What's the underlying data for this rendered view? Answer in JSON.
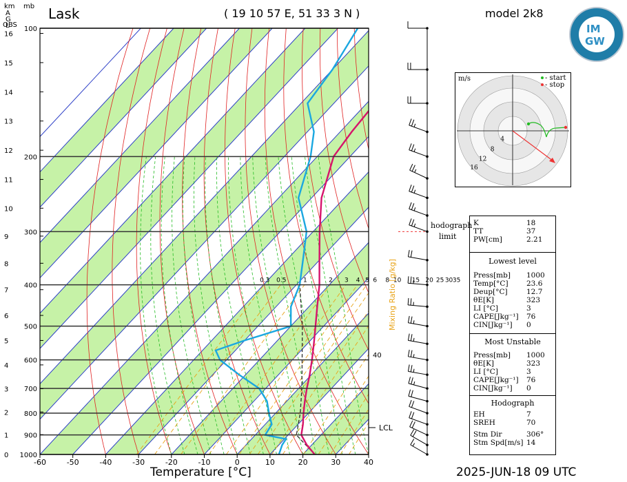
{
  "header": {
    "station": "Lask",
    "coords": "( 19 10 57 E, 51 33 3 N )",
    "model": "model 2k8",
    "datetime": "2025-JUN-18   09 UTC",
    "logo_text": [
      "IM",
      "GW"
    ]
  },
  "axes": {
    "km_label": "km",
    "mb_label": "mb",
    "agl_label": [
      "A",
      "G",
      "L"
    ],
    "obs_label": "OBS",
    "xlabel": "Temperature [°C]",
    "xticks": [
      -60,
      -50,
      -40,
      -30,
      -20,
      -10,
      0,
      10,
      20,
      30,
      40
    ],
    "pressure_ticks": [
      100,
      200,
      300,
      400,
      500,
      600,
      700,
      800,
      900,
      1000
    ],
    "height_ticks": [
      0,
      1,
      2,
      3,
      4,
      5,
      6,
      7,
      8,
      9,
      10,
      11,
      12,
      13,
      14,
      15,
      16
    ],
    "mixing_ratio_label": "Mixing Ratio [g/kg]",
    "mixing_ratio_ticks": [
      "0.3",
      "0.5",
      "1",
      "2",
      "3",
      "4",
      "5",
      "6",
      "8",
      "10",
      "15",
      "20",
      "25",
      "30",
      "35"
    ],
    "right_marker": "40",
    "lcl_label": "LCL"
  },
  "chart_data": {
    "type": "skew-t",
    "temperature_profile": [
      {
        "p": 1000,
        "t": 23.6
      },
      {
        "p": 950,
        "t": 18.5
      },
      {
        "p": 900,
        "t": 14.0
      },
      {
        "p": 850,
        "t": 11.5
      },
      {
        "p": 800,
        "t": 8.5
      },
      {
        "p": 750,
        "t": 5.5
      },
      {
        "p": 700,
        "t": 2.5
      },
      {
        "p": 650,
        "t": -0.5
      },
      {
        "p": 600,
        "t": -4.0
      },
      {
        "p": 550,
        "t": -8.0
      },
      {
        "p": 500,
        "t": -12.5
      },
      {
        "p": 450,
        "t": -17.5
      },
      {
        "p": 400,
        "t": -23.0
      },
      {
        "p": 350,
        "t": -30.0
      },
      {
        "p": 300,
        "t": -38.0
      },
      {
        "p": 250,
        "t": -47.0
      },
      {
        "p": 200,
        "t": -55.0
      },
      {
        "p": 175,
        "t": -56.5
      },
      {
        "p": 150,
        "t": -57.5
      },
      {
        "p": 125,
        "t": -59.0
      },
      {
        "p": 100,
        "t": -61.0
      }
    ],
    "dewpoint_profile": [
      {
        "p": 1000,
        "t": 12.7
      },
      {
        "p": 950,
        "t": 11.0
      },
      {
        "p": 920,
        "t": 10.5
      },
      {
        "p": 900,
        "t": 3.0
      },
      {
        "p": 850,
        "t": 2.0
      },
      {
        "p": 800,
        "t": -2.0
      },
      {
        "p": 750,
        "t": -6.0
      },
      {
        "p": 700,
        "t": -12.0
      },
      {
        "p": 650,
        "t": -22.0
      },
      {
        "p": 600,
        "t": -32.0
      },
      {
        "p": 570,
        "t": -36.0
      },
      {
        "p": 540,
        "t": -30.0
      },
      {
        "p": 500,
        "t": -20.0
      },
      {
        "p": 450,
        "t": -25.5
      },
      {
        "p": 400,
        "t": -29.0
      },
      {
        "p": 350,
        "t": -35.0
      },
      {
        "p": 300,
        "t": -42.0
      },
      {
        "p": 250,
        "t": -54.0
      },
      {
        "p": 200,
        "t": -62.0
      },
      {
        "p": 175,
        "t": -68.0
      },
      {
        "p": 150,
        "t": -78.0
      },
      {
        "p": 125,
        "t": -80.0
      },
      {
        "p": 100,
        "t": -84.0
      }
    ],
    "parcel_profile": [
      {
        "p": 1000,
        "t": 23.6
      },
      {
        "p": 900,
        "t": 12.5
      },
      {
        "p": 800,
        "t": 7.5
      },
      {
        "p": 700,
        "t": 1.0
      },
      {
        "p": 600,
        "t": -7.0
      },
      {
        "p": 500,
        "t": -16.5
      },
      {
        "p": 400,
        "t": -29.0
      }
    ],
    "lcl_pressure": 865,
    "wind_barbs": [
      {
        "p": 1000,
        "dir": 300,
        "spd": 15
      },
      {
        "p": 950,
        "dir": 300,
        "spd": 20
      },
      {
        "p": 900,
        "dir": 295,
        "spd": 20
      },
      {
        "p": 850,
        "dir": 290,
        "spd": 20
      },
      {
        "p": 800,
        "dir": 290,
        "spd": 20
      },
      {
        "p": 750,
        "dir": 285,
        "spd": 20
      },
      {
        "p": 700,
        "dir": 285,
        "spd": 25
      },
      {
        "p": 650,
        "dir": 280,
        "spd": 25
      },
      {
        "p": 600,
        "dir": 280,
        "spd": 25
      },
      {
        "p": 550,
        "dir": 280,
        "spd": 25
      },
      {
        "p": 500,
        "dir": 280,
        "spd": 25
      },
      {
        "p": 450,
        "dir": 275,
        "spd": 25
      },
      {
        "p": 400,
        "dir": 275,
        "spd": 25
      },
      {
        "p": 350,
        "dir": 280,
        "spd": 20
      },
      {
        "p": 300,
        "dir": 290,
        "spd": 25
      },
      {
        "p": 275,
        "dir": 290,
        "spd": 25
      },
      {
        "p": 250,
        "dir": 290,
        "spd": 25
      },
      {
        "p": 225,
        "dir": 295,
        "spd": 25
      },
      {
        "p": 200,
        "dir": 290,
        "spd": 25
      },
      {
        "p": 175,
        "dir": 290,
        "spd": 25
      },
      {
        "p": 150,
        "dir": 270,
        "spd": 20
      },
      {
        "p": 125,
        "dir": 270,
        "spd": 20
      },
      {
        "p": 100,
        "dir": 270,
        "spd": 10
      }
    ]
  },
  "hodograph": {
    "units": "m/s",
    "legend": [
      "- start",
      "- stop"
    ],
    "ring_labels": [
      "4",
      "8",
      "12",
      "16"
    ],
    "limit_label": "hodograph",
    "limit_label2": "limit"
  },
  "indices": {
    "top": [
      {
        "label": "K",
        "value": "18"
      },
      {
        "label": "TT",
        "value": "37"
      },
      {
        "label": "PW[cm]",
        "value": "2.21"
      }
    ],
    "lowest_title": "Lowest level",
    "lowest": [
      {
        "label": "Press[mb]",
        "value": "1000"
      },
      {
        "label": "Temp[°C]",
        "value": "23.6"
      },
      {
        "label": "Deup[°C]",
        "value": "12.7"
      },
      {
        "label": "θE[K]",
        "value": "323"
      },
      {
        "label": "LI [°C]",
        "value": "3"
      },
      {
        "label": "CAPE[Jkg⁻¹]",
        "value": "76"
      },
      {
        "label": "CIN[Jkg⁻¹]",
        "value": "0"
      }
    ],
    "unstable_title": "Most Unstable",
    "unstable": [
      {
        "label": "Press[mb]",
        "value": "1000"
      },
      {
        "label": "θE[K]",
        "value": "323"
      },
      {
        "label": "LI [°C]",
        "value": "3"
      },
      {
        "label": "CAPE[Jkg⁻¹]",
        "value": "76"
      },
      {
        "label": "CIN[Jkg⁻¹]",
        "value": "0"
      }
    ],
    "hodo_title": "Hodograph",
    "hodo": [
      {
        "label": "EH",
        "value": "7"
      },
      {
        "label": "SREH",
        "value": "70"
      },
      {
        "label": "Stm Dir",
        "value": "306°"
      },
      {
        "label": "Stm Spd[m/s]",
        "value": "14"
      }
    ]
  },
  "colors": {
    "temperature": "#d6136b",
    "dewpoint": "#1aa7e0",
    "parcel": "#2c2c2c",
    "isotherm": "#2c3fc7",
    "dry_adiabat": "#e02020",
    "moist_adiabat": "#22bb22",
    "mixing_ratio": "#e8a317",
    "band": "#c6f2a7"
  }
}
